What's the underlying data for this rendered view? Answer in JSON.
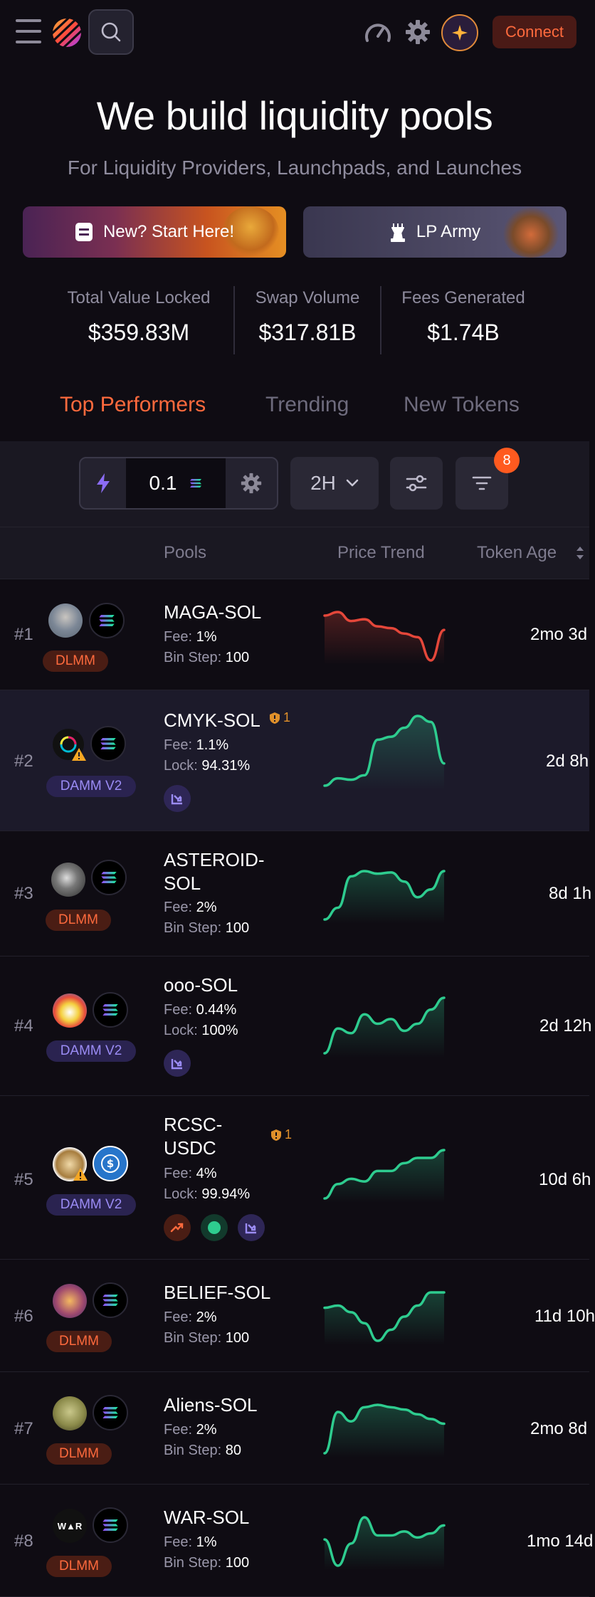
{
  "header": {
    "connect_label": "Connect",
    "icons": [
      "menu-icon",
      "meteora-logo",
      "search-icon",
      "speedometer-icon",
      "gear-icon",
      "sparkle-icon"
    ]
  },
  "hero": {
    "title": "We build liquidity pools",
    "subtitle": "For Liquidity Providers, Launchpads, and Launches",
    "cta_start": "New? Start Here!",
    "cta_army": "LP Army"
  },
  "stats": [
    {
      "label": "Total Value Locked",
      "value": "$359.83M"
    },
    {
      "label": "Swap Volume",
      "value": "$317.81B"
    },
    {
      "label": "Fees Generated",
      "value": "$1.74B"
    }
  ],
  "tabs": [
    "Top Performers",
    "Trending",
    "New Tokens"
  ],
  "controls": {
    "quick_amount": "0.1",
    "timeframe": "2H",
    "filter_count": "8"
  },
  "table": {
    "headers": {
      "pools": "Pools",
      "trend": "Price Trend",
      "age": "Token Age"
    },
    "rows": [
      {
        "rank": "#1",
        "type": "DLMM",
        "name": "MAGA-SOL",
        "fee_label": "Fee:",
        "fee": "1%",
        "line2_label": "Bin Step:",
        "line2": "100",
        "age": "2mo 3d",
        "trend": "red",
        "points": [
          30,
          32,
          27,
          28,
          24,
          23,
          20,
          18,
          5,
          22
        ]
      },
      {
        "rank": "#2",
        "type": "DAMM V2",
        "name": "CMYK-SOL",
        "shield": "1",
        "fee_label": "Fee:",
        "fee": "1.1%",
        "line2_label": "Lock:",
        "line2": "94.31%",
        "age": "2d 8h",
        "trend": "green",
        "points": [
          5,
          10,
          9,
          12,
          36,
          38,
          44,
          52,
          48,
          20
        ]
      },
      {
        "rank": "#3",
        "type": "DLMM",
        "name": "ASTEROID-SOL",
        "fee_label": "Fee:",
        "fee": "2%",
        "line2_label": "Bin Step:",
        "line2": "100",
        "age": "8d 1h",
        "trend": "green",
        "points": [
          5,
          14,
          38,
          42,
          40,
          41,
          34,
          22,
          28,
          42
        ]
      },
      {
        "rank": "#4",
        "type": "DAMM V2",
        "name": "ooo-SOL",
        "fee_label": "Fee:",
        "fee": "0.44%",
        "line2_label": "Lock:",
        "line2": "100%",
        "age": "2d 12h",
        "trend": "green",
        "points": [
          5,
          26,
          22,
          38,
          30,
          34,
          24,
          30,
          42,
          52
        ]
      },
      {
        "rank": "#5",
        "type": "DAMM V2",
        "name": "RCSC-USDC",
        "shield": "1",
        "fee_label": "Fee:",
        "fee": "4%",
        "line2_label": "Lock:",
        "line2": "99.94%",
        "age": "10d 6h",
        "trend": "green",
        "points": [
          5,
          16,
          20,
          18,
          26,
          26,
          32,
          36,
          36,
          42
        ]
      },
      {
        "rank": "#6",
        "type": "DLMM",
        "name": "BELIEF-SOL",
        "fee_label": "Fee:",
        "fee": "2%",
        "line2_label": "Bin Step:",
        "line2": "100",
        "age": "11d 10h",
        "trend": "green",
        "points": [
          42,
          44,
          38,
          28,
          12,
          22,
          34,
          44,
          56,
          56
        ]
      },
      {
        "rank": "#7",
        "type": "DLMM",
        "name": "Aliens-SOL",
        "fee_label": "Fee:",
        "fee": "2%",
        "line2_label": "Bin Step:",
        "line2": "80",
        "age": "2mo 8d",
        "trend": "green",
        "points": [
          5,
          40,
          32,
          44,
          46,
          44,
          42,
          38,
          34,
          30
        ]
      },
      {
        "rank": "#8",
        "type": "DLMM",
        "name": "WAR-SOL",
        "fee_label": "Fee:",
        "fee": "1%",
        "line2_label": "Bin Step:",
        "line2": "100",
        "age": "1mo 14d",
        "trend": "green",
        "points": [
          30,
          4,
          26,
          52,
          34,
          34,
          38,
          32,
          36,
          44
        ]
      }
    ]
  },
  "colors": {
    "accent": "#ff6a3d",
    "green_trend": "#2ecc8f",
    "red_trend": "#e5473a",
    "damm_badge": "#9b8cf5"
  }
}
